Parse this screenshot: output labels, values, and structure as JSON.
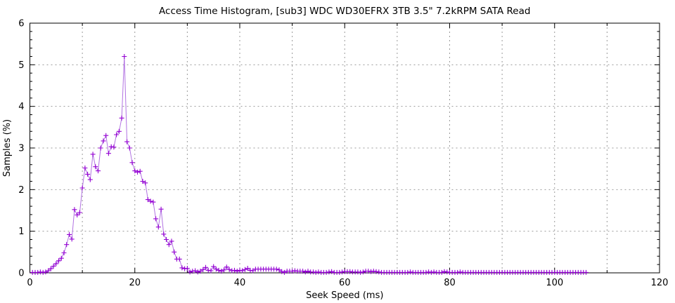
{
  "page": {
    "background": "#ffffff"
  },
  "chart_data": {
    "type": "line",
    "title": "Access Time Histogram, [sub3] WDC WD30EFRX 3TB 3.5\" 7.2kRPM SATA Read",
    "xlabel": "Seek Speed (ms)",
    "ylabel": "Samples (%)",
    "xlim": [
      0,
      120
    ],
    "ylim": [
      0,
      6
    ],
    "x_major_ticks": [
      0,
      20,
      40,
      60,
      80,
      100,
      120
    ],
    "x_tick_labels": [
      "0",
      "20",
      "40",
      "60",
      "80",
      "100",
      "120"
    ],
    "x_minor_tick_step": 10,
    "y_major_ticks": [
      0,
      1,
      2,
      3,
      4,
      5,
      6
    ],
    "y_tick_labels": [
      "0",
      "1",
      "2",
      "3",
      "4",
      "5",
      "6"
    ],
    "y_minor_tick_step": 0.2,
    "grid": {
      "x_step": 10,
      "y_step": 1,
      "color": "#9a9a9a",
      "style": "dashed"
    },
    "legend": "none",
    "border_color": "#000000",
    "series": [
      {
        "name": "samples",
        "marker": "plus",
        "marker_color": "#9400d3",
        "line_color": "#b273e2",
        "points": [
          [
            0.5,
            0.01
          ],
          [
            1,
            0.01
          ],
          [
            1.5,
            0.01
          ],
          [
            2,
            0.02
          ],
          [
            2.5,
            0.01
          ],
          [
            3,
            0.02
          ],
          [
            3.5,
            0.05
          ],
          [
            4,
            0.1
          ],
          [
            4.5,
            0.16
          ],
          [
            5,
            0.22
          ],
          [
            5.5,
            0.29
          ],
          [
            6,
            0.35
          ],
          [
            6.5,
            0.48
          ],
          [
            7,
            0.68
          ],
          [
            7.5,
            0.92
          ],
          [
            8,
            0.81
          ],
          [
            8.5,
            1.52
          ],
          [
            9,
            1.39
          ],
          [
            9.5,
            1.45
          ],
          [
            10,
            2.04
          ],
          [
            10.5,
            2.52
          ],
          [
            11,
            2.37
          ],
          [
            11.5,
            2.24
          ],
          [
            12,
            2.85
          ],
          [
            12.5,
            2.55
          ],
          [
            13,
            2.45
          ],
          [
            13.5,
            3
          ],
          [
            14,
            3.17
          ],
          [
            14.5,
            3.3
          ],
          [
            15,
            2.87
          ],
          [
            15.5,
            3.03
          ],
          [
            16,
            3.02
          ],
          [
            16.5,
            3.32
          ],
          [
            17,
            3.4
          ],
          [
            17.5,
            3.72
          ],
          [
            18,
            5.2
          ],
          [
            18.5,
            3.15
          ],
          [
            19,
            3
          ],
          [
            19.5,
            2.65
          ],
          [
            20,
            2.45
          ],
          [
            20.5,
            2.42
          ],
          [
            21,
            2.44
          ],
          [
            21.5,
            2.2
          ],
          [
            22,
            2.16
          ],
          [
            22.5,
            1.76
          ],
          [
            23,
            1.72
          ],
          [
            23.5,
            1.7
          ],
          [
            24,
            1.3
          ],
          [
            24.5,
            1.1
          ],
          [
            25,
            1.53
          ],
          [
            25.5,
            0.93
          ],
          [
            26,
            0.8
          ],
          [
            26.5,
            0.68
          ],
          [
            27,
            0.76
          ],
          [
            27.5,
            0.5
          ],
          [
            28,
            0.33
          ],
          [
            28.5,
            0.33
          ],
          [
            29,
            0.12
          ],
          [
            29.5,
            0.1
          ],
          [
            30,
            0.11
          ],
          [
            30.5,
            0.02
          ],
          [
            31,
            0.04
          ],
          [
            31.5,
            0.05
          ],
          [
            32,
            0.02
          ],
          [
            32.5,
            0.04
          ],
          [
            33,
            0.08
          ],
          [
            33.5,
            0.13
          ],
          [
            34,
            0.06
          ],
          [
            34.5,
            0.05
          ],
          [
            35,
            0.15
          ],
          [
            35.5,
            0.09
          ],
          [
            36,
            0.06
          ],
          [
            36.5,
            0.04
          ],
          [
            37,
            0.07
          ],
          [
            37.5,
            0.14
          ],
          [
            38,
            0.08
          ],
          [
            38.5,
            0.05
          ],
          [
            39,
            0.06
          ],
          [
            39.5,
            0.04
          ],
          [
            40,
            0.06
          ],
          [
            40.5,
            0.05
          ],
          [
            41,
            0.08
          ],
          [
            41.5,
            0.11
          ],
          [
            42,
            0.06
          ],
          [
            42.5,
            0.05
          ],
          [
            43,
            0.09
          ],
          [
            43.5,
            0.09
          ],
          [
            44,
            0.09
          ],
          [
            44.5,
            0.09
          ],
          [
            45,
            0.09
          ],
          [
            45.5,
            0.09
          ],
          [
            46,
            0.09
          ],
          [
            46.5,
            0.09
          ],
          [
            47,
            0.09
          ],
          [
            47.5,
            0.07
          ],
          [
            48,
            0.03
          ],
          [
            48.5,
            0.01
          ],
          [
            49,
            0.04
          ],
          [
            49.5,
            0.04
          ],
          [
            50,
            0.04
          ],
          [
            50.5,
            0.05
          ],
          [
            51,
            0.04
          ],
          [
            51.5,
            0.04
          ],
          [
            52,
            0.04
          ],
          [
            52.5,
            0.02
          ],
          [
            53,
            0.04
          ],
          [
            53.5,
            0.02
          ],
          [
            54,
            0.02
          ],
          [
            54.5,
            0.01
          ],
          [
            55,
            0.02
          ],
          [
            55.5,
            0.01
          ],
          [
            56,
            0.01
          ],
          [
            56.5,
            0.01
          ],
          [
            57,
            0.02
          ],
          [
            57.5,
            0.03
          ],
          [
            58,
            0.01
          ],
          [
            58.5,
            0.01
          ],
          [
            59,
            0.01
          ],
          [
            59.5,
            0.02
          ],
          [
            60,
            0.03
          ],
          [
            60.5,
            0.03
          ],
          [
            61,
            0.03
          ],
          [
            61.5,
            0.02
          ],
          [
            62,
            0.02
          ],
          [
            62.5,
            0.02
          ],
          [
            63,
            0.01
          ],
          [
            63.5,
            0.02
          ],
          [
            64,
            0.04
          ],
          [
            64.5,
            0.04
          ],
          [
            65,
            0.03
          ],
          [
            65.5,
            0.04
          ],
          [
            66,
            0.03
          ],
          [
            66.5,
            0.02
          ],
          [
            67,
            0.01
          ],
          [
            67.5,
            0.01
          ],
          [
            68,
            0.01
          ],
          [
            68.5,
            0.01
          ],
          [
            69,
            0.01
          ],
          [
            69.5,
            0.01
          ],
          [
            70,
            0.01
          ],
          [
            70.5,
            0.01
          ],
          [
            71,
            0.01
          ],
          [
            71.5,
            0.01
          ],
          [
            72,
            0.01
          ],
          [
            72.5,
            0.02
          ],
          [
            73,
            0.01
          ],
          [
            73.5,
            0.01
          ],
          [
            74,
            0.01
          ],
          [
            74.5,
            0.01
          ],
          [
            75,
            0.01
          ],
          [
            75.5,
            0.01
          ],
          [
            76,
            0.02
          ],
          [
            76.5,
            0.01
          ],
          [
            77,
            0.02
          ],
          [
            77.5,
            0.01
          ],
          [
            78,
            0.01
          ],
          [
            78.5,
            0.01
          ],
          [
            79,
            0.03
          ],
          [
            79.5,
            0.02
          ],
          [
            80,
            0.01
          ],
          [
            80.5,
            0.01
          ],
          [
            81,
            0.01
          ],
          [
            81.5,
            0.01
          ],
          [
            82,
            0.02
          ],
          [
            82.5,
            0.01
          ],
          [
            83,
            0.01
          ],
          [
            83.5,
            0.01
          ],
          [
            84,
            0.01
          ],
          [
            84.5,
            0.01
          ],
          [
            85,
            0.01
          ],
          [
            85.5,
            0.01
          ],
          [
            86,
            0.01
          ],
          [
            86.5,
            0.01
          ],
          [
            87,
            0.01
          ],
          [
            87.5,
            0.01
          ],
          [
            88,
            0.01
          ],
          [
            88.5,
            0.01
          ],
          [
            89,
            0.01
          ],
          [
            89.5,
            0.01
          ],
          [
            90,
            0.01
          ],
          [
            90.5,
            0.01
          ],
          [
            91,
            0.01
          ],
          [
            91.5,
            0.01
          ],
          [
            92,
            0.01
          ],
          [
            92.5,
            0.01
          ],
          [
            93,
            0.01
          ],
          [
            93.5,
            0.01
          ],
          [
            94,
            0.01
          ],
          [
            94.5,
            0.01
          ],
          [
            95,
            0.01
          ],
          [
            95.5,
            0.01
          ],
          [
            96,
            0.01
          ],
          [
            96.5,
            0.01
          ],
          [
            97,
            0.01
          ],
          [
            97.5,
            0.01
          ],
          [
            98,
            0.01
          ],
          [
            98.5,
            0.01
          ],
          [
            99,
            0.01
          ],
          [
            99.5,
            0.01
          ],
          [
            100,
            0.01
          ],
          [
            100.5,
            0.01
          ],
          [
            101,
            0.01
          ],
          [
            101.5,
            0.01
          ],
          [
            102,
            0.01
          ],
          [
            102.5,
            0.01
          ],
          [
            103,
            0.01
          ],
          [
            103.5,
            0.01
          ],
          [
            104,
            0.01
          ],
          [
            104.5,
            0.01
          ],
          [
            105,
            0.01
          ],
          [
            105.5,
            0.01
          ],
          [
            106,
            0.01
          ]
        ]
      }
    ]
  }
}
